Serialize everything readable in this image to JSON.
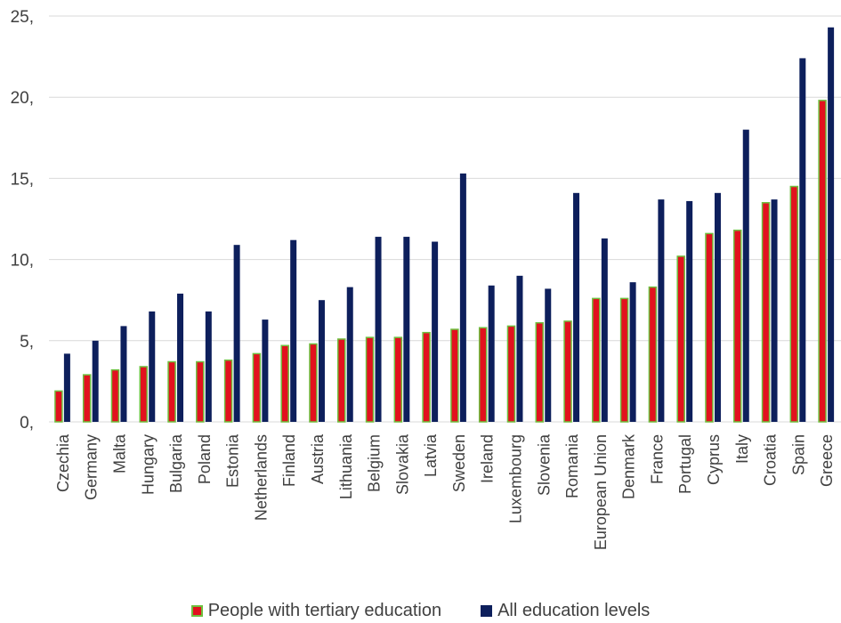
{
  "chart_data": {
    "type": "bar",
    "title": "",
    "xlabel": "",
    "ylabel": "",
    "ylim": [
      0,
      25
    ],
    "y_ticks": [
      0,
      5,
      10,
      15,
      20,
      25
    ],
    "y_tick_labels": [
      "0,",
      "5,",
      "10,",
      "15,",
      "20,",
      "25,"
    ],
    "grid": "horizontal",
    "legend_position": "bottom",
    "categories": [
      "Czechia",
      "Germany",
      "Malta",
      "Hungary",
      "Bulgaria",
      "Poland",
      "Estonia",
      "Netherlands",
      "Finland",
      "Austria",
      "Lithuania",
      "Belgium",
      "Slovakia",
      "Latvia",
      "Sweden",
      "Ireland",
      "Luxembourg",
      "Slovenia",
      "Romania",
      "European Union",
      "Denmark",
      "France",
      "Portugal",
      "Cyprus",
      "Italy",
      "Croatia",
      "Spain",
      "Greece"
    ],
    "series": [
      {
        "name": "People with tertiary education",
        "color": "#e2111e",
        "edge_color": "#6fbf3f",
        "values": [
          1.9,
          2.9,
          3.2,
          3.4,
          3.7,
          3.7,
          3.8,
          4.2,
          4.7,
          4.8,
          5.1,
          5.2,
          5.2,
          5.5,
          5.7,
          5.8,
          5.9,
          6.1,
          6.2,
          7.6,
          7.6,
          8.3,
          10.2,
          11.6,
          11.8,
          13.5,
          14.5,
          19.8
        ]
      },
      {
        "name": "All education levels",
        "color": "#0d1f5c",
        "values": [
          4.2,
          5.0,
          5.9,
          6.8,
          7.9,
          6.8,
          10.9,
          6.3,
          11.2,
          7.5,
          8.3,
          11.4,
          11.4,
          11.1,
          15.3,
          8.4,
          9.0,
          8.2,
          14.1,
          11.3,
          8.6,
          13.7,
          13.6,
          14.1,
          18.0,
          13.7,
          22.4,
          24.3
        ]
      }
    ]
  }
}
